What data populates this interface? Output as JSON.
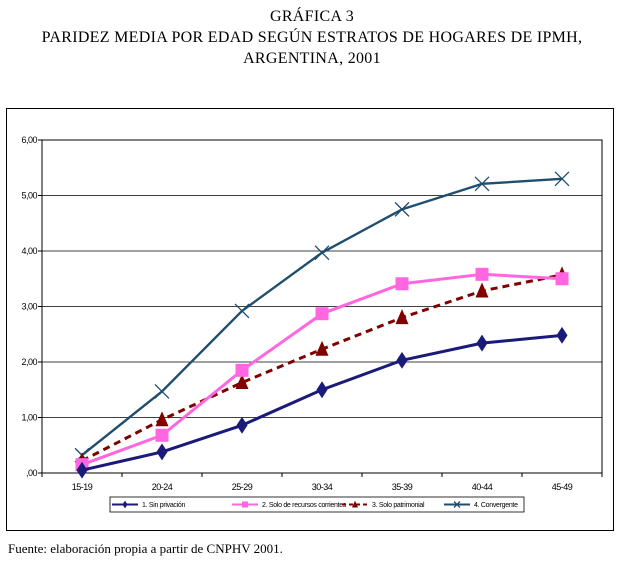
{
  "header": {
    "line1": "GRÁFICA 3",
    "line2": "PARIDEZ MEDIA POR EDAD SEGÚN ESTRATOS DE HOGARES DE IPMH,",
    "line3": "ARGENTINA, 2001"
  },
  "source": "Fuente: elaboración propia a partir de CNPHV 2001.",
  "chart_data": {
    "type": "line",
    "categories": [
      "15-19",
      "20-24",
      "25-29",
      "30-34",
      "35-39",
      "40-44",
      "45-49"
    ],
    "ylim": [
      0,
      6
    ],
    "yticks": [
      ",00",
      "1,00",
      "2,00",
      "3,00",
      "4,00",
      "5,00",
      "6,00"
    ],
    "grid": true,
    "legend_position": "bottom",
    "series": [
      {
        "name": "1. Sin privación",
        "values": [
          0.05,
          0.38,
          0.86,
          1.5,
          2.03,
          2.34,
          2.48
        ],
        "color": "#1a1a7a",
        "marker": "diamond",
        "dash": "solid"
      },
      {
        "name": "2. Solo de recursos corrientes",
        "values": [
          0.15,
          0.68,
          1.85,
          2.87,
          3.41,
          3.58,
          3.5
        ],
        "color": "#ff66e0",
        "marker": "square",
        "dash": "solid"
      },
      {
        "name": "3. Solo patrimonial",
        "values": [
          0.22,
          0.96,
          1.63,
          2.23,
          2.8,
          3.28,
          3.57
        ],
        "color": "#800000",
        "marker": "triangle",
        "dash": "dashed"
      },
      {
        "name": "4. Convergente",
        "values": [
          0.32,
          1.47,
          2.92,
          3.97,
          4.75,
          5.21,
          5.3
        ],
        "color": "#1f4e6e",
        "marker": "x",
        "dash": "solid"
      }
    ]
  }
}
